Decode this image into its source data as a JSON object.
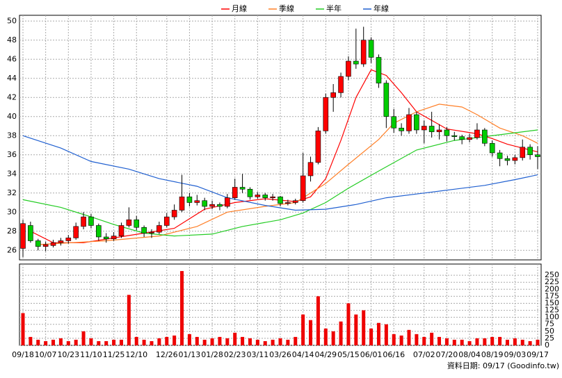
{
  "chart_data": {
    "type": "candlestick",
    "categories": [
      "09/18",
      null,
      null,
      "10/07",
      null,
      null,
      "10/23",
      null,
      null,
      "11/10",
      null,
      null,
      "11/25",
      null,
      null,
      "12/10",
      null,
      null,
      null,
      "12/26",
      null,
      null,
      "01/13",
      null,
      null,
      "01/28",
      null,
      null,
      "02/23",
      null,
      null,
      "03/11",
      null,
      null,
      "03/26",
      null,
      null,
      "04/14",
      null,
      null,
      "04/29",
      null,
      null,
      "05/15",
      null,
      null,
      "06/01",
      null,
      null,
      "06/16",
      null,
      null,
      null,
      "07/02",
      null,
      null,
      "07/20",
      null,
      null,
      "08/04",
      null,
      null,
      "08/19",
      null,
      null,
      "09/03",
      null,
      null,
      "09/17"
    ],
    "candles": [
      [
        26.2,
        29.2,
        25.3,
        28.8
      ],
      [
        28.6,
        29.0,
        26.8,
        27.0
      ],
      [
        27.0,
        27.2,
        26.0,
        26.4
      ],
      [
        26.4,
        26.9,
        25.9,
        26.6
      ],
      [
        26.5,
        27.1,
        26.3,
        26.8
      ],
      [
        26.8,
        27.3,
        26.5,
        27.0
      ],
      [
        27.0,
        27.6,
        26.7,
        27.3
      ],
      [
        27.3,
        28.9,
        27.1,
        28.5
      ],
      [
        28.5,
        30.0,
        28.2,
        29.5
      ],
      [
        29.5,
        29.8,
        28.3,
        28.6
      ],
      [
        28.6,
        28.8,
        27.0,
        27.4
      ],
      [
        27.4,
        27.8,
        26.8,
        27.2
      ],
      [
        27.2,
        27.9,
        27.0,
        27.5
      ],
      [
        27.5,
        28.9,
        27.3,
        28.6
      ],
      [
        28.6,
        30.5,
        28.4,
        29.2
      ],
      [
        29.2,
        29.6,
        28.1,
        28.4
      ],
      [
        28.4,
        28.6,
        27.4,
        27.8
      ],
      [
        27.8,
        28.2,
        27.3,
        27.9
      ],
      [
        27.9,
        29.0,
        27.7,
        28.6
      ],
      [
        28.6,
        29.9,
        28.4,
        29.5
      ],
      [
        29.5,
        30.8,
        29.2,
        30.2
      ],
      [
        30.2,
        33.9,
        30.0,
        31.6
      ],
      [
        31.6,
        32.0,
        30.6,
        31.0
      ],
      [
        31.0,
        31.8,
        30.7,
        31.2
      ],
      [
        31.2,
        31.5,
        30.2,
        30.6
      ],
      [
        30.6,
        31.2,
        30.3,
        30.8
      ],
      [
        30.8,
        31.0,
        30.2,
        30.6
      ],
      [
        30.6,
        31.9,
        30.4,
        31.5
      ],
      [
        31.5,
        33.5,
        31.3,
        32.6
      ],
      [
        32.6,
        34.0,
        32.0,
        32.4
      ],
      [
        32.4,
        32.6,
        31.3,
        31.6
      ],
      [
        31.6,
        32.1,
        31.4,
        31.8
      ],
      [
        31.8,
        32.0,
        31.2,
        31.5
      ],
      [
        31.5,
        31.9,
        31.2,
        31.6
      ],
      [
        31.6,
        31.7,
        30.6,
        30.9
      ],
      [
        30.9,
        31.3,
        30.7,
        31.0
      ],
      [
        31.0,
        31.4,
        30.8,
        31.2
      ],
      [
        31.2,
        36.2,
        31.0,
        33.8
      ],
      [
        33.8,
        35.8,
        33.2,
        35.2
      ],
      [
        35.2,
        38.9,
        35.0,
        38.5
      ],
      [
        38.5,
        42.4,
        38.2,
        42.0
      ],
      [
        42.0,
        43.4,
        40.5,
        42.5
      ],
      [
        42.5,
        44.6,
        42.0,
        44.2
      ],
      [
        44.2,
        46.3,
        43.8,
        45.8
      ],
      [
        45.8,
        49.2,
        45.0,
        45.5
      ],
      [
        45.5,
        49.4,
        45.2,
        48.0
      ],
      [
        48.0,
        48.3,
        45.6,
        46.2
      ],
      [
        46.2,
        46.5,
        43.0,
        43.5
      ],
      [
        43.5,
        43.8,
        38.8,
        40.0
      ],
      [
        40.0,
        40.8,
        38.3,
        38.8
      ],
      [
        38.8,
        39.3,
        38.0,
        38.5
      ],
      [
        38.5,
        40.9,
        38.2,
        40.2
      ],
      [
        40.2,
        40.5,
        38.2,
        38.6
      ],
      [
        38.6,
        39.6,
        37.2,
        39.0
      ],
      [
        39.0,
        40.5,
        37.8,
        38.4
      ],
      [
        38.4,
        39.2,
        37.6,
        38.6
      ],
      [
        38.6,
        38.9,
        37.4,
        38.0
      ],
      [
        38.0,
        38.4,
        37.5,
        37.9
      ],
      [
        37.9,
        38.1,
        37.1,
        37.6
      ],
      [
        37.6,
        38.2,
        37.3,
        37.8
      ],
      [
        37.8,
        39.3,
        37.6,
        38.6
      ],
      [
        38.6,
        38.8,
        36.9,
        37.2
      ],
      [
        37.2,
        37.5,
        35.8,
        36.2
      ],
      [
        36.2,
        36.5,
        34.8,
        35.6
      ],
      [
        35.6,
        35.9,
        34.9,
        35.4
      ],
      [
        35.4,
        36.0,
        35.0,
        35.7
      ],
      [
        35.7,
        37.6,
        35.4,
        36.8
      ],
      [
        36.8,
        37.1,
        35.5,
        36.0
      ],
      [
        36.0,
        36.9,
        34.5,
        35.8
      ]
    ],
    "up_color": "#ff0000",
    "down_color": "#00cc00",
    "series": [
      {
        "name": "月線",
        "color": "#ff0000",
        "x": [
          1,
          4,
          8,
          12,
          16,
          20,
          24,
          28,
          32,
          36,
          38,
          40,
          42,
          44,
          46,
          48,
          50,
          52,
          56,
          60,
          62,
          64,
          66,
          68
        ],
        "values": [
          28,
          26.8,
          26.8,
          27.3,
          27.8,
          28.3,
          30.3,
          31,
          31.4,
          31.1,
          31.6,
          33.5,
          37.5,
          42,
          44.9,
          44.3,
          42.5,
          40.5,
          38.7,
          38.2,
          37.7,
          37.1,
          36.7,
          36.3
        ]
      },
      {
        "name": "季線",
        "color": "#ff7f27",
        "x": [
          2,
          11,
          18,
          23,
          27,
          32,
          36,
          40,
          43,
          47,
          49,
          52,
          55,
          58,
          60,
          63,
          66,
          68
        ],
        "values": [
          26.6,
          27,
          27.5,
          28.5,
          30,
          30.6,
          31,
          33,
          35,
          37.6,
          39.3,
          40.5,
          41.3,
          41,
          40.2,
          38.8,
          38,
          37.2
        ]
      },
      {
        "name": "半年",
        "color": "#22cc22",
        "x": [
          0,
          5,
          9,
          12,
          16,
          20,
          25,
          29,
          34,
          37,
          40,
          43,
          47,
          52,
          57,
          61,
          65,
          68
        ],
        "values": [
          31.3,
          30.5,
          29.5,
          28.7,
          27.8,
          27.5,
          27.7,
          28.5,
          29.2,
          29.9,
          31,
          32.5,
          34.3,
          36.5,
          37.5,
          37.9,
          38.3,
          38.6
        ]
      },
      {
        "name": "年線",
        "color": "#1f5fd0",
        "x": [
          0,
          5,
          9,
          14,
          18,
          23,
          27,
          32,
          36,
          40,
          44,
          48,
          53,
          57,
          61,
          65,
          68
        ],
        "values": [
          38,
          36.7,
          35.3,
          34.5,
          33.5,
          32.7,
          31.5,
          30.7,
          30.2,
          30.3,
          30.8,
          31.5,
          32,
          32.4,
          32.8,
          33.4,
          33.9
        ]
      }
    ],
    "ylim": [
      25,
      50.6
    ],
    "yticks": [
      26,
      28,
      30,
      32,
      34,
      36,
      38,
      40,
      42,
      44,
      46,
      48,
      50
    ],
    "grid": true,
    "volume": {
      "color": "#ee0000",
      "ylim": [
        0,
        290
      ],
      "yticks": [
        0,
        25,
        50,
        75,
        100,
        125,
        150,
        175,
        200,
        225,
        250
      ],
      "values": [
        115,
        30,
        20,
        15,
        20,
        25,
        15,
        20,
        50,
        25,
        15,
        15,
        20,
        20,
        180,
        30,
        20,
        15,
        25,
        30,
        35,
        265,
        40,
        30,
        20,
        25,
        30,
        25,
        45,
        30,
        25,
        20,
        15,
        20,
        25,
        20,
        30,
        110,
        90,
        175,
        60,
        50,
        85,
        150,
        110,
        125,
        60,
        80,
        75,
        40,
        35,
        55,
        40,
        30,
        45,
        30,
        25,
        20,
        20,
        15,
        25,
        25,
        30,
        30,
        20,
        25,
        20,
        15,
        20
      ]
    },
    "note": "資料日期: 09/17  (Goodinfo.tw)"
  }
}
